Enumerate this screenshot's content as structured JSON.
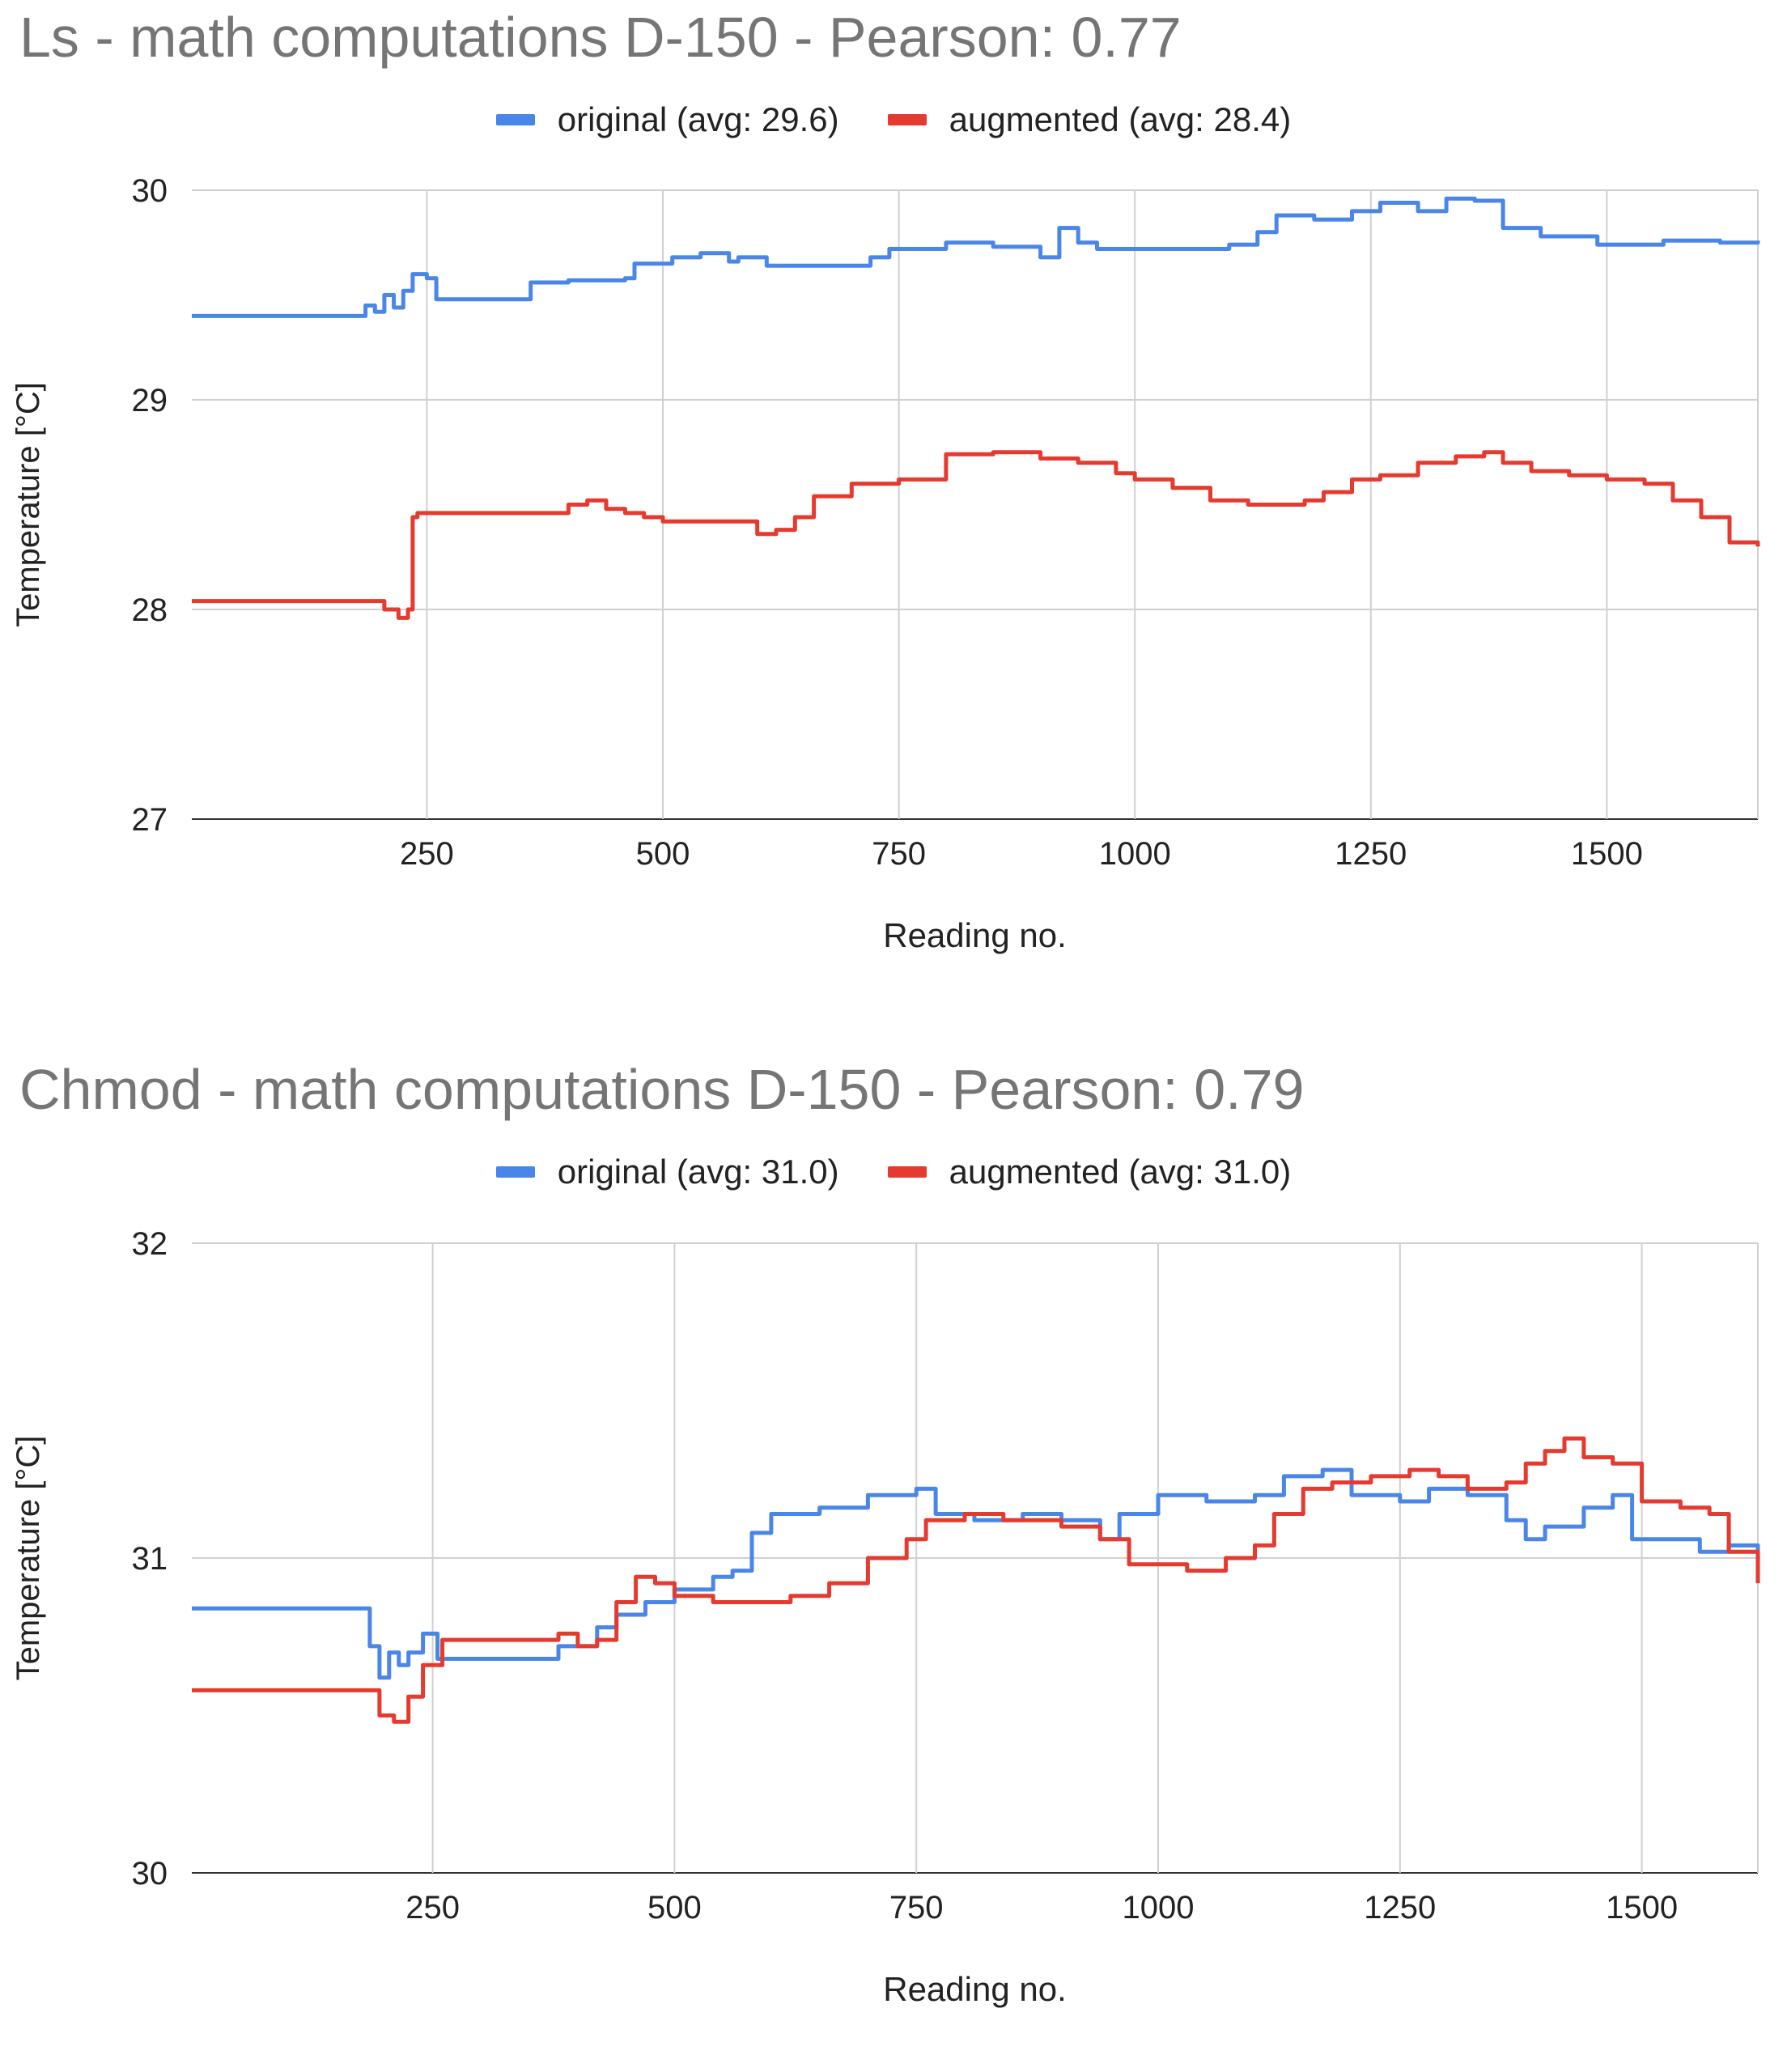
{
  "charts": [
    {
      "title": "Ls - math computations D-150 - Pearson: 0.77",
      "legend": [
        {
          "label": "original (avg: 29.6)",
          "color": "#4a86e8"
        },
        {
          "label": "augmented (avg: 28.4)",
          "color": "#e53a2f"
        }
      ]
    },
    {
      "title": "Chmod - math computations D-150 - Pearson: 0.79",
      "legend": [
        {
          "label": "original (avg: 31.0)",
          "color": "#4a86e8"
        },
        {
          "label": "augmented (avg: 31.0)",
          "color": "#e53a2f"
        }
      ]
    }
  ],
  "chart_data": [
    {
      "type": "line",
      "title": "Ls - math computations D-150 - Pearson: 0.77",
      "xlabel": "Reading no.",
      "ylabel": "Temperature [°C]",
      "xlim": [
        1,
        1660
      ],
      "ylim": [
        27,
        30
      ],
      "xticks": [
        "250",
        "500",
        "750",
        "1000",
        "1250",
        "1500"
      ],
      "xtick_values": [
        250,
        500,
        750,
        1000,
        1250,
        1500
      ],
      "yticks": [
        "27",
        "28",
        "29",
        "30"
      ],
      "ytick_values": [
        27,
        28,
        29,
        30
      ],
      "series": [
        {
          "name": "original (avg: 29.6)",
          "color": "#4a86e8",
          "points": [
            [
              1,
              29.4
            ],
            [
              175,
              29.4
            ],
            [
              185,
              29.45
            ],
            [
              195,
              29.42
            ],
            [
              205,
              29.5
            ],
            [
              215,
              29.44
            ],
            [
              225,
              29.52
            ],
            [
              235,
              29.6
            ],
            [
              250,
              29.58
            ],
            [
              260,
              29.48
            ],
            [
              350,
              29.48
            ],
            [
              360,
              29.56
            ],
            [
              380,
              29.56
            ],
            [
              400,
              29.57
            ],
            [
              460,
              29.58
            ],
            [
              470,
              29.65
            ],
            [
              510,
              29.68
            ],
            [
              540,
              29.7
            ],
            [
              570,
              29.66
            ],
            [
              580,
              29.68
            ],
            [
              610,
              29.64
            ],
            [
              690,
              29.64
            ],
            [
              720,
              29.68
            ],
            [
              740,
              29.72
            ],
            [
              800,
              29.75
            ],
            [
              850,
              29.73
            ],
            [
              900,
              29.68
            ],
            [
              920,
              29.82
            ],
            [
              940,
              29.75
            ],
            [
              960,
              29.72
            ],
            [
              1000,
              29.72
            ],
            [
              1100,
              29.74
            ],
            [
              1130,
              29.8
            ],
            [
              1150,
              29.88
            ],
            [
              1190,
              29.86
            ],
            [
              1230,
              29.9
            ],
            [
              1260,
              29.94
            ],
            [
              1300,
              29.9
            ],
            [
              1330,
              29.96
            ],
            [
              1360,
              29.95
            ],
            [
              1390,
              29.82
            ],
            [
              1430,
              29.78
            ],
            [
              1460,
              29.78
            ],
            [
              1490,
              29.74
            ],
            [
              1560,
              29.76
            ],
            [
              1620,
              29.75
            ],
            [
              1660,
              29.76
            ]
          ]
        },
        {
          "name": "augmented (avg: 28.4)",
          "color": "#e53a2f",
          "points": [
            [
              1,
              28.04
            ],
            [
              190,
              28.04
            ],
            [
              205,
              28.0
            ],
            [
              220,
              27.96
            ],
            [
              230,
              28.0
            ],
            [
              235,
              28.44
            ],
            [
              240,
              28.46
            ],
            [
              380,
              28.46
            ],
            [
              400,
              28.5
            ],
            [
              420,
              28.52
            ],
            [
              440,
              28.48
            ],
            [
              460,
              28.46
            ],
            [
              480,
              28.44
            ],
            [
              500,
              28.42
            ],
            [
              580,
              28.42
            ],
            [
              600,
              28.36
            ],
            [
              620,
              28.38
            ],
            [
              640,
              28.44
            ],
            [
              660,
              28.54
            ],
            [
              700,
              28.6
            ],
            [
              750,
              28.62
            ],
            [
              800,
              28.74
            ],
            [
              850,
              28.75
            ],
            [
              900,
              28.72
            ],
            [
              940,
              28.7
            ],
            [
              980,
              28.65
            ],
            [
              1000,
              28.62
            ],
            [
              1040,
              28.58
            ],
            [
              1080,
              28.52
            ],
            [
              1120,
              28.5
            ],
            [
              1180,
              28.52
            ],
            [
              1200,
              28.56
            ],
            [
              1230,
              28.62
            ],
            [
              1260,
              28.64
            ],
            [
              1300,
              28.7
            ],
            [
              1340,
              28.73
            ],
            [
              1370,
              28.75
            ],
            [
              1390,
              28.7
            ],
            [
              1420,
              28.66
            ],
            [
              1460,
              28.64
            ],
            [
              1500,
              28.62
            ],
            [
              1540,
              28.6
            ],
            [
              1570,
              28.52
            ],
            [
              1600,
              28.44
            ],
            [
              1630,
              28.32
            ],
            [
              1660,
              28.3
            ]
          ]
        }
      ]
    },
    {
      "type": "line",
      "title": "Chmod - math computations D-150 - Pearson: 0.79",
      "xlabel": "Reading no.",
      "ylabel": "Temperature [°C]",
      "xlim": [
        1,
        1620
      ],
      "ylim": [
        30,
        32
      ],
      "xticks": [
        "250",
        "500",
        "750",
        "1000",
        "1250",
        "1500"
      ],
      "xtick_values": [
        250,
        500,
        750,
        1000,
        1250,
        1500
      ],
      "yticks": [
        "30",
        "31",
        "32"
      ],
      "ytick_values": [
        30,
        31,
        32
      ],
      "series": [
        {
          "name": "original (avg: 31.0)",
          "color": "#4a86e8",
          "points": [
            [
              1,
              30.84
            ],
            [
              175,
              30.84
            ],
            [
              185,
              30.72
            ],
            [
              195,
              30.62
            ],
            [
              205,
              30.7
            ],
            [
              215,
              30.66
            ],
            [
              225,
              30.7
            ],
            [
              240,
              30.76
            ],
            [
              255,
              30.68
            ],
            [
              360,
              30.68
            ],
            [
              380,
              30.72
            ],
            [
              400,
              30.72
            ],
            [
              420,
              30.78
            ],
            [
              440,
              30.82
            ],
            [
              470,
              30.86
            ],
            [
              500,
              30.9
            ],
            [
              540,
              30.94
            ],
            [
              560,
              30.96
            ],
            [
              580,
              31.08
            ],
            [
              600,
              31.14
            ],
            [
              650,
              31.16
            ],
            [
              700,
              31.2
            ],
            [
              750,
              31.22
            ],
            [
              770,
              31.14
            ],
            [
              810,
              31.12
            ],
            [
              860,
              31.14
            ],
            [
              900,
              31.12
            ],
            [
              940,
              31.06
            ],
            [
              960,
              31.14
            ],
            [
              1000,
              31.2
            ],
            [
              1050,
              31.18
            ],
            [
              1100,
              31.2
            ],
            [
              1130,
              31.26
            ],
            [
              1170,
              31.28
            ],
            [
              1200,
              31.2
            ],
            [
              1250,
              31.18
            ],
            [
              1280,
              31.22
            ],
            [
              1320,
              31.2
            ],
            [
              1360,
              31.12
            ],
            [
              1380,
              31.06
            ],
            [
              1400,
              31.1
            ],
            [
              1440,
              31.16
            ],
            [
              1470,
              31.2
            ],
            [
              1490,
              31.06
            ],
            [
              1530,
              31.06
            ],
            [
              1560,
              31.02
            ],
            [
              1590,
              31.04
            ],
            [
              1620,
              31.02
            ]
          ]
        },
        {
          "name": "augmented (avg: 31.0)",
          "color": "#e53a2f",
          "points": [
            [
              1,
              30.58
            ],
            [
              185,
              30.58
            ],
            [
              195,
              30.5
            ],
            [
              210,
              30.48
            ],
            [
              225,
              30.56
            ],
            [
              240,
              30.66
            ],
            [
              260,
              30.74
            ],
            [
              360,
              30.74
            ],
            [
              380,
              30.76
            ],
            [
              400,
              30.72
            ],
            [
              420,
              30.74
            ],
            [
              440,
              30.86
            ],
            [
              460,
              30.94
            ],
            [
              480,
              30.92
            ],
            [
              500,
              30.88
            ],
            [
              540,
              30.86
            ],
            [
              580,
              30.86
            ],
            [
              620,
              30.88
            ],
            [
              660,
              30.92
            ],
            [
              700,
              31.0
            ],
            [
              740,
              31.06
            ],
            [
              760,
              31.12
            ],
            [
              800,
              31.14
            ],
            [
              840,
              31.12
            ],
            [
              900,
              31.1
            ],
            [
              940,
              31.06
            ],
            [
              970,
              30.98
            ],
            [
              1000,
              30.98
            ],
            [
              1030,
              30.96
            ],
            [
              1070,
              31.0
            ],
            [
              1100,
              31.04
            ],
            [
              1120,
              31.14
            ],
            [
              1150,
              31.22
            ],
            [
              1180,
              31.24
            ],
            [
              1220,
              31.26
            ],
            [
              1260,
              31.28
            ],
            [
              1290,
              31.26
            ],
            [
              1320,
              31.22
            ],
            [
              1360,
              31.24
            ],
            [
              1380,
              31.3
            ],
            [
              1400,
              31.34
            ],
            [
              1420,
              31.38
            ],
            [
              1440,
              31.32
            ],
            [
              1470,
              31.3
            ],
            [
              1500,
              31.18
            ],
            [
              1540,
              31.16
            ],
            [
              1570,
              31.14
            ],
            [
              1590,
              31.02
            ],
            [
              1620,
              30.92
            ]
          ]
        }
      ]
    }
  ]
}
